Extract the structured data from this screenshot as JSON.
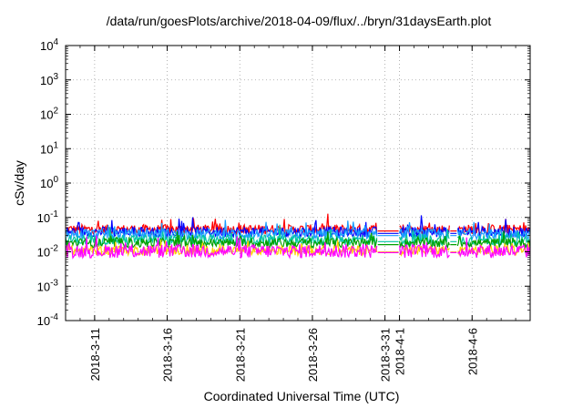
{
  "chart_data": {
    "type": "line",
    "title": "/data/run/goesPlots/archive/2018-04-09/flux/../bryn/31daysEarth.plot",
    "xlabel": "Coordinated Universal Time (UTC)",
    "ylabel": "cSv/day",
    "yscale": "log",
    "ylim": [
      0.0001,
      10000
    ],
    "xlim": [
      "2018-03-09",
      "2018-04-10"
    ],
    "y_ticks": [
      {
        "base": "10",
        "exp": "-4",
        "value": 0.0001
      },
      {
        "base": "10",
        "exp": "-3",
        "value": 0.001
      },
      {
        "base": "10",
        "exp": "-2",
        "value": 0.01
      },
      {
        "base": "10",
        "exp": "-1",
        "value": 0.1
      },
      {
        "base": "10",
        "exp": "0",
        "value": 1
      },
      {
        "base": "10",
        "exp": "1",
        "value": 10
      },
      {
        "base": "10",
        "exp": "2",
        "value": 100
      },
      {
        "base": "10",
        "exp": "3",
        "value": 1000
      },
      {
        "base": "10",
        "exp": "4",
        "value": 10000
      }
    ],
    "x_ticks": [
      {
        "label": "2018-3-11",
        "date": "2018-03-11"
      },
      {
        "label": "2018-3-16",
        "date": "2018-03-16"
      },
      {
        "label": "2018-3-21",
        "date": "2018-03-21"
      },
      {
        "label": "2018-3-26",
        "date": "2018-03-26"
      },
      {
        "label": "2018-3-31",
        "date": "2018-03-31"
      },
      {
        "label": "2018-4-1",
        "date": "2018-04-01"
      },
      {
        "label": "2018-4-6",
        "date": "2018-04-06"
      }
    ],
    "grid": true,
    "series": [
      {
        "color": "#ff0000",
        "baseline": 0.045,
        "spread": 0.28,
        "spike": 0.35
      },
      {
        "color": "#0000ff",
        "baseline": 0.038,
        "spread": 0.3,
        "spike": 0.38
      },
      {
        "color": "#1a9dff",
        "baseline": 0.033,
        "spread": 0.3,
        "spike": 0.36
      },
      {
        "color": "#00c8a0",
        "baseline": 0.022,
        "spread": 0.3,
        "spike": 0.3
      },
      {
        "color": "#00a000",
        "baseline": 0.018,
        "spread": 0.28,
        "spike": 0.25
      },
      {
        "color": "#ffd000",
        "baseline": 0.011,
        "spread": 0.28,
        "spike": 0.22
      },
      {
        "color": "#ff00ff",
        "baseline": 0.0105,
        "spread": 0.4,
        "spike": 0.3
      }
    ],
    "gaps": [
      {
        "from": "2018-03-30T12:00",
        "to": "2018-04-01T00:00"
      },
      {
        "from": "2018-04-04T12:00",
        "to": "2018-04-05T00:00"
      }
    ]
  }
}
